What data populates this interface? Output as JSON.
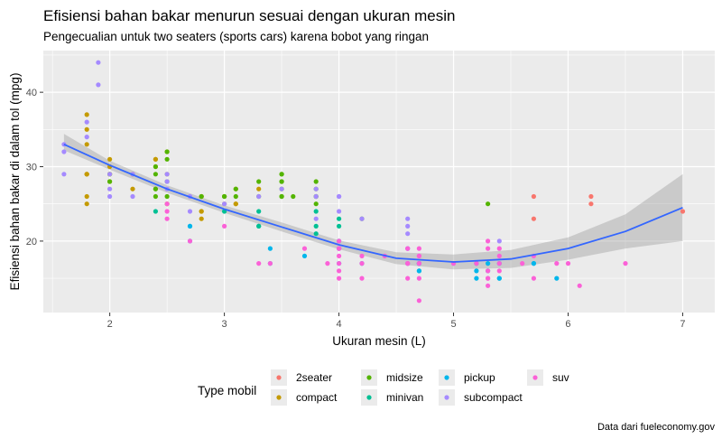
{
  "chart_data": {
    "type": "scatter",
    "title": "Efisiensi bahan bakar menurun sesuai dengan ukuran mesin",
    "subtitle": "Pengecualian untuk two seaters (sports cars) karena bobot yang ringan",
    "xlabel": "Ukuran mesin (L)",
    "ylabel": "Efisiensi bahan bakar di dalam tol (mpg)",
    "caption": "Data dari fueleconomy.gov",
    "xlim": [
      1.42,
      7.28
    ],
    "ylim": [
      10.4,
      45.6
    ],
    "x_ticks": [
      2,
      3,
      4,
      5,
      6,
      7
    ],
    "y_ticks": [
      20,
      30,
      40
    ],
    "grid": true,
    "legend_title": "Type mobil",
    "legend_position": "bottom",
    "colors": {
      "2seater": "#F8766D",
      "compact": "#C49A00",
      "midsize": "#53B400",
      "minivan": "#00C094",
      "pickup": "#00B6EB",
      "subcompact": "#A58AFF",
      "suv": "#FB61D7",
      "smooth": "#3366FF",
      "band": "#999999",
      "panel": "#EBEBEB"
    },
    "series": [
      {
        "name": "2seater",
        "points": [
          [
            5.7,
            26
          ],
          [
            5.7,
            23
          ],
          [
            6.2,
            26
          ],
          [
            6.2,
            25
          ],
          [
            7.0,
            24
          ]
        ]
      },
      {
        "name": "compact",
        "points": [
          [
            1.8,
            29
          ],
          [
            1.8,
            29
          ],
          [
            2.0,
            31
          ],
          [
            2.0,
            30
          ],
          [
            2.8,
            26
          ],
          [
            2.8,
            26
          ],
          [
            3.1,
            27
          ],
          [
            1.8,
            26
          ],
          [
            1.8,
            25
          ],
          [
            2.0,
            28
          ],
          [
            2.0,
            29
          ],
          [
            2.8,
            23
          ],
          [
            2.8,
            24
          ],
          [
            3.1,
            25
          ],
          [
            3.1,
            25
          ],
          [
            2.2,
            27
          ],
          [
            2.2,
            29
          ],
          [
            2.4,
            31
          ],
          [
            2.4,
            31
          ],
          [
            3.0,
            26
          ],
          [
            3.3,
            27
          ],
          [
            1.8,
            33
          ],
          [
            1.8,
            35
          ],
          [
            1.8,
            37
          ],
          [
            1.8,
            29
          ],
          [
            2.0,
            29
          ],
          [
            2.5,
            29
          ],
          [
            2.5,
            25
          ],
          [
            2.8,
            24
          ],
          [
            2.4,
            30
          ],
          [
            2.5,
            32
          ],
          [
            3.0,
            25
          ]
        ]
      },
      {
        "name": "midsize",
        "points": [
          [
            2.4,
            27
          ],
          [
            2.4,
            30
          ],
          [
            3.1,
            26
          ],
          [
            3.5,
            29
          ],
          [
            3.6,
            26
          ],
          [
            2.4,
            26
          ],
          [
            3.0,
            26
          ],
          [
            3.3,
            26
          ],
          [
            3.3,
            28
          ],
          [
            3.8,
            26
          ],
          [
            3.8,
            25
          ],
          [
            3.8,
            26
          ],
          [
            3.8,
            28
          ],
          [
            3.8,
            27
          ],
          [
            4.2,
            23
          ],
          [
            2.5,
            31
          ],
          [
            2.5,
            32
          ],
          [
            3.5,
            26
          ],
          [
            3.5,
            27
          ],
          [
            2.8,
            26
          ],
          [
            2.5,
            28
          ],
          [
            2.5,
            26
          ],
          [
            3.1,
            27
          ],
          [
            2.0,
            28
          ],
          [
            2.0,
            29
          ],
          [
            3.5,
            28
          ],
          [
            3.5,
            29
          ],
          [
            3.5,
            28
          ],
          [
            5.3,
            25
          ],
          [
            2.4,
            29
          ],
          [
            2.4,
            27
          ],
          [
            3.0,
            26
          ],
          [
            3.5,
            26
          ]
        ]
      },
      {
        "name": "minivan",
        "points": [
          [
            2.4,
            24
          ],
          [
            3.0,
            24
          ],
          [
            3.3,
            22
          ],
          [
            3.3,
            22
          ],
          [
            3.3,
            24
          ],
          [
            3.8,
            24
          ],
          [
            3.8,
            22
          ],
          [
            3.8,
            21
          ],
          [
            4.0,
            23
          ],
          [
            4.0,
            22
          ]
        ]
      },
      {
        "name": "pickup",
        "points": [
          [
            3.7,
            18
          ],
          [
            4.7,
            17
          ],
          [
            4.7,
            17
          ],
          [
            5.2,
            17
          ],
          [
            5.2,
            15
          ],
          [
            5.9,
            15
          ],
          [
            4.7,
            16
          ],
          [
            4.7,
            17
          ],
          [
            5.2,
            16
          ],
          [
            5.7,
            17
          ],
          [
            3.4,
            17
          ],
          [
            3.4,
            19
          ],
          [
            4.0,
            17
          ],
          [
            4.7,
            16
          ],
          [
            2.7,
            20
          ],
          [
            2.7,
            22
          ],
          [
            4.2,
            17
          ],
          [
            4.6,
            17
          ],
          [
            5.4,
            15
          ],
          [
            5.4,
            17
          ],
          [
            4.0,
            19
          ],
          [
            2.7,
            22
          ],
          [
            4.0,
            20
          ],
          [
            4.7,
            17
          ],
          [
            5.3,
            16
          ],
          [
            5.3,
            17
          ],
          [
            5.4,
            15
          ],
          [
            5.7,
            17
          ]
        ]
      },
      {
        "name": "subcompact",
        "points": [
          [
            1.6,
            33
          ],
          [
            1.6,
            32
          ],
          [
            1.6,
            29
          ],
          [
            1.8,
            34
          ],
          [
            1.8,
            36
          ],
          [
            1.9,
            44
          ],
          [
            1.9,
            41
          ],
          [
            2.0,
            26
          ],
          [
            2.0,
            29
          ],
          [
            2.0,
            27
          ],
          [
            2.5,
            29
          ],
          [
            2.5,
            28
          ],
          [
            2.7,
            24
          ],
          [
            3.8,
            26
          ],
          [
            3.8,
            23
          ],
          [
            4.0,
            26
          ],
          [
            4.0,
            24
          ],
          [
            4.6,
            23
          ],
          [
            4.6,
            22
          ],
          [
            4.6,
            21
          ],
          [
            5.4,
            20
          ],
          [
            4.6,
            17
          ],
          [
            2.2,
            26
          ],
          [
            2.5,
            27
          ],
          [
            3.0,
            25
          ],
          [
            3.3,
            26
          ],
          [
            3.5,
            27
          ],
          [
            3.8,
            27
          ],
          [
            4.0,
            26
          ],
          [
            4.2,
            23
          ],
          [
            2.2,
            29
          ],
          [
            2.7,
            26
          ],
          [
            4.6,
            19
          ],
          [
            4.6,
            19
          ],
          [
            5.0,
            17
          ]
        ]
      },
      {
        "name": "suv",
        "points": [
          [
            5.3,
            20
          ],
          [
            5.3,
            15
          ],
          [
            5.7,
            15
          ],
          [
            6.5,
            17
          ],
          [
            3.9,
            17
          ],
          [
            4.7,
            15
          ],
          [
            4.7,
            12
          ],
          [
            4.7,
            18
          ],
          [
            5.2,
            17
          ],
          [
            5.9,
            17
          ],
          [
            4.0,
            17
          ],
          [
            4.0,
            19
          ],
          [
            4.0,
            20
          ],
          [
            4.6,
            17
          ],
          [
            4.6,
            19
          ],
          [
            5.4,
            19
          ],
          [
            6.1,
            14
          ],
          [
            4.7,
            18
          ],
          [
            5.3,
            16
          ],
          [
            5.7,
            18
          ],
          [
            4.0,
            16
          ],
          [
            4.6,
            15
          ],
          [
            5.0,
            17
          ],
          [
            4.2,
            18
          ],
          [
            4.4,
            18
          ],
          [
            4.2,
            17
          ],
          [
            5.4,
            17
          ],
          [
            2.5,
            24
          ],
          [
            2.5,
            23
          ],
          [
            3.3,
            17
          ],
          [
            3.7,
            19
          ],
          [
            4.2,
            15
          ],
          [
            4.7,
            17
          ],
          [
            4.0,
            18
          ],
          [
            5.3,
            14
          ],
          [
            6.0,
            17
          ],
          [
            2.7,
            20
          ],
          [
            3.0,
            22
          ],
          [
            3.4,
            17
          ],
          [
            4.0,
            15
          ],
          [
            4.7,
            19
          ],
          [
            5.4,
            16
          ],
          [
            5.3,
            19
          ],
          [
            5.6,
            17
          ],
          [
            4.6,
            17
          ],
          [
            5.4,
            18
          ],
          [
            4.0,
            19
          ],
          [
            4.7,
            17
          ],
          [
            5.3,
            15
          ],
          [
            2.5,
            25
          ]
        ]
      }
    ],
    "smooth": {
      "x": [
        1.6,
        2.0,
        2.5,
        3.0,
        3.5,
        4.0,
        4.5,
        5.0,
        5.5,
        6.0,
        6.5,
        7.0
      ],
      "y": [
        33.0,
        30.2,
        27.0,
        24.3,
        21.9,
        19.5,
        17.7,
        17.2,
        17.6,
        19.0,
        21.3,
        24.5
      ],
      "lower": [
        32.2,
        29.6,
        26.5,
        23.8,
        21.3,
        18.9,
        16.9,
        16.2,
        16.4,
        17.5,
        19.0,
        20.0
      ],
      "upper": [
        34.4,
        30.8,
        27.5,
        24.8,
        22.5,
        20.1,
        18.5,
        18.2,
        18.8,
        20.5,
        23.6,
        29.0
      ]
    }
  }
}
